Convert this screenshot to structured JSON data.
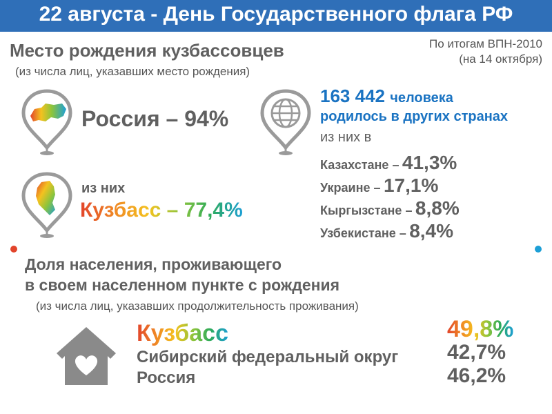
{
  "header": {
    "title": "22 августа - День Государственного флага РФ"
  },
  "birthplace": {
    "title": "Место рождения кузбассовцев",
    "subtitle": "(из числа лиц, указавших место рождения)",
    "source_line1": "По итогам ВПН-2010",
    "source_line2": "(на 14 октября)",
    "russia": {
      "label": "Россия – 94%",
      "icon": "russia-map-pin-icon"
    },
    "kuzbass": {
      "prefix": "из них",
      "label": "Кузбасс – 77,4%",
      "icon": "kuzbass-map-pin-icon"
    },
    "abroad": {
      "icon": "globe-pin-icon",
      "count": "163 442",
      "count_suffix": "человека",
      "line2": "родилось в других странах",
      "line3": "из них в",
      "countries": [
        {
          "name": "Казахстане –",
          "value": "41,3%"
        },
        {
          "name": "Украине –",
          "value": "17,1%"
        },
        {
          "name": "Кыргызстане –",
          "value": "8,8%"
        },
        {
          "name": "Узбекистане –",
          "value": "8,4%"
        }
      ]
    }
  },
  "residence": {
    "title_line1": "Доля населения, проживающего",
    "title_line2": "в своем населенном пункте с рождения",
    "subtitle": "(из числа лиц, указавших продолжительность проживания)",
    "icon": "house-heart-icon",
    "rows": [
      {
        "name": "Кузбасс",
        "value": "49,8%"
      },
      {
        "name": "Сибирский федеральный округ",
        "value": "42,7%"
      },
      {
        "name": "Россия",
        "value": "46,2%"
      }
    ]
  },
  "colors": {
    "banner": "#2f6fb8",
    "accent_blue": "#1a73c2",
    "text_gray": "#606060"
  }
}
